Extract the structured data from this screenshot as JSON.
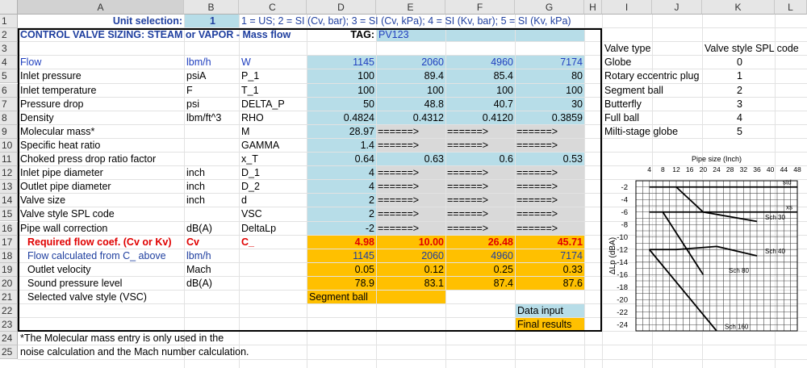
{
  "columns": [
    "A",
    "B",
    "C",
    "D",
    "E",
    "F",
    "G",
    "H",
    "I",
    "J",
    "K",
    "L"
  ],
  "rows": [
    "1",
    "2",
    "3",
    "4",
    "5",
    "6",
    "7",
    "8",
    "9",
    "10",
    "11",
    "12",
    "13",
    "14",
    "15",
    "16",
    "17",
    "18",
    "19",
    "20",
    "21",
    "22",
    "23",
    "24",
    "25"
  ],
  "row1": {
    "label": "Unit selection:",
    "value": "1",
    "options": "1 = US;  2 = SI (Cv, bar);  3 = SI (Cv, kPa);  4 = SI (Kv, bar);  5 = SI (Kv, kPa)"
  },
  "row2": {
    "title": "CONTROL VALVE SIZING: STEAM or VAPOR - Mass flow",
    "tag_label": "TAG:",
    "tag_value": "PV123"
  },
  "params": [
    {
      "name": "Flow",
      "unit": "lbm/h",
      "sym": "W",
      "vals": [
        "1145",
        "2060",
        "4960",
        "7174"
      ],
      "style": "blue"
    },
    {
      "name": "Inlet pressure",
      "unit": "psiA",
      "sym": "P_1",
      "vals": [
        "100",
        "89.4",
        "85.4",
        "80"
      ]
    },
    {
      "name": "Inlet temperature",
      "unit": "F",
      "sym": "T_1",
      "vals": [
        "100",
        "100",
        "100",
        "100"
      ]
    },
    {
      "name": "Pressure drop",
      "unit": "psi",
      "sym": "DELTA_P",
      "vals": [
        "50",
        "48.8",
        "40.7",
        "30"
      ]
    },
    {
      "name": "Density",
      "unit": "lbm/ft^3",
      "sym": "RHO",
      "vals": [
        "0.4824",
        "0.4312",
        "0.4120",
        "0.3859"
      ]
    },
    {
      "name": "Molecular mass*",
      "unit": "",
      "sym": "M",
      "vals": [
        "28.97",
        "======>",
        "======>",
        "======>"
      ]
    },
    {
      "name": "Specific heat ratio",
      "unit": "",
      "sym": "GAMMA",
      "vals": [
        "1.4",
        "======>",
        "======>",
        "======>"
      ]
    },
    {
      "name": "Choked press drop ratio factor",
      "unit": "",
      "sym": "x_T",
      "vals": [
        "0.64",
        "0.63",
        "0.6",
        "0.53"
      ]
    },
    {
      "name": "Inlet pipe diameter",
      "unit": "inch",
      "sym": "D_1",
      "vals": [
        "4",
        "======>",
        "======>",
        "======>"
      ]
    },
    {
      "name": "Outlet pipe diameter",
      "unit": "inch",
      "sym": "D_2",
      "vals": [
        "4",
        "======>",
        "======>",
        "======>"
      ]
    },
    {
      "name": "Valve size",
      "unit": "inch",
      "sym": "d",
      "vals": [
        "2",
        "======>",
        "======>",
        "======>"
      ]
    },
    {
      "name": "Valve style SPL code",
      "unit": "",
      "sym": "VSC",
      "vals": [
        "2",
        "======>",
        "======>",
        "======>"
      ]
    },
    {
      "name": "Pipe wall correction",
      "unit": "dB(A)",
      "sym": "DeltaLp",
      "vals": [
        "-2",
        "======>",
        "======>",
        "======>"
      ]
    }
  ],
  "results": [
    {
      "name": "Required flow coef. (Cv or Kv)",
      "unit": "Cv",
      "sym": "C_",
      "vals": [
        "4.98",
        "10.00",
        "26.48",
        "45.71"
      ],
      "style": "red"
    },
    {
      "name": "Flow calculated from C_ above",
      "unit": "lbm/h",
      "sym": "",
      "vals": [
        "1145",
        "2060",
        "4960",
        "7174"
      ],
      "style": "navy"
    },
    {
      "name": "Outlet velocity",
      "unit": "Mach",
      "sym": "",
      "vals": [
        "0.05",
        "0.12",
        "0.25",
        "0.33"
      ]
    },
    {
      "name": "Sound pressure level",
      "unit": "dB(A)",
      "sym": "",
      "vals": [
        "78.9",
        "83.1",
        "87.4",
        "87.6"
      ]
    },
    {
      "name": "Selected valve style (VSC)",
      "unit": "",
      "sym": "",
      "vals": [
        "Segment ball",
        "",
        "",
        ""
      ]
    }
  ],
  "legend": {
    "input": "Data input",
    "results": "Final results"
  },
  "footnote": [
    "*The Molecular mass entry is only used in the",
    "noise calculation and the Mach number calculation."
  ],
  "valve_table": {
    "header": [
      "Valve type",
      "Valve style SPL code"
    ],
    "rows": [
      [
        "Globe",
        "0"
      ],
      [
        "Rotary eccentric plug",
        "1"
      ],
      [
        "Segment ball",
        "2"
      ],
      [
        "Butterfly",
        "3"
      ],
      [
        "Full ball",
        "4"
      ],
      [
        "Milti-stage globe",
        "5"
      ]
    ]
  },
  "chart_data": {
    "type": "line",
    "title": "Pipe size (Inch)",
    "ylabel": "ΔLp (dBA)",
    "x_ticks": [
      4,
      8,
      12,
      16,
      20,
      24,
      28,
      32,
      36,
      40,
      44,
      48
    ],
    "y_ticks": [
      -2,
      -4,
      -6,
      -8,
      -10,
      -12,
      -14,
      -16,
      -18,
      -20,
      -22,
      -24
    ],
    "xlim": [
      0,
      48
    ],
    "ylim": [
      -25,
      -1
    ],
    "series": [
      {
        "name": "std",
        "points": [
          [
            4,
            -2
          ],
          [
            48,
            -2
          ]
        ]
      },
      {
        "name": "xs",
        "points": [
          [
            4,
            -6
          ],
          [
            48,
            -6
          ]
        ]
      },
      {
        "name": "Sch 30",
        "points": [
          [
            12,
            -2
          ],
          [
            20,
            -6
          ],
          [
            36,
            -7.5
          ]
        ]
      },
      {
        "name": "Sch 40",
        "points": [
          [
            4,
            -12
          ],
          [
            12,
            -12
          ],
          [
            24,
            -11.5
          ],
          [
            36,
            -13
          ]
        ]
      },
      {
        "name": "Sch 80",
        "points": [
          [
            8,
            -6
          ],
          [
            20,
            -16
          ]
        ]
      },
      {
        "name": "Sch 160",
        "points": [
          [
            4,
            -12
          ],
          [
            24,
            -25
          ]
        ]
      }
    ]
  }
}
